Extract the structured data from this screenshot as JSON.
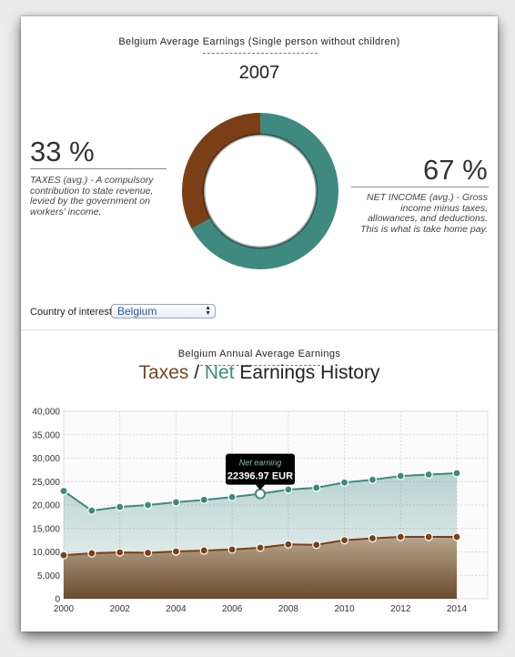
{
  "header": {
    "title": "Belgium Average Earnings (Single person without children)",
    "year": "2007"
  },
  "donut": {
    "taxes_pct_label": "33 %",
    "taxes_desc": "TAXES (avg.) - A compulsory contribution to state revenue, levied by the government on workers' income.",
    "net_pct_label": "67 %",
    "net_desc": "NET INCOME (avg.) - Gross income minus taxes, allowances, and deductions. This is what is take home pay.",
    "taxes_fraction": 0.33,
    "colors": {
      "taxes": "#7b3f17",
      "net": "#3e8a80"
    }
  },
  "country": {
    "label": "Country of interest:",
    "selected": "Belgium"
  },
  "history": {
    "subtitle": "Belgium Annual Average Earnings",
    "title_taxes": "Taxes",
    "title_sep": " / ",
    "title_net": "Net",
    "title_rest": " Earnings History"
  },
  "tooltip": {
    "label": "Net earning",
    "value": "22396.97 EUR"
  },
  "chart_data": {
    "type": "area",
    "x": [
      2000,
      2001,
      2002,
      2003,
      2004,
      2005,
      2006,
      2007,
      2008,
      2009,
      2010,
      2011,
      2012,
      2013,
      2014
    ],
    "series": [
      {
        "name": "Net",
        "color": "#3e8a80",
        "values": [
          23000,
          18800,
          19600,
          20000,
          20600,
          21100,
          21700,
          22397,
          23300,
          23700,
          24800,
          25400,
          26200,
          26500,
          26800
        ]
      },
      {
        "name": "Taxes",
        "color": "#7b3f17",
        "values": [
          9300,
          9700,
          9900,
          9800,
          10100,
          10300,
          10500,
          10900,
          11600,
          11500,
          12500,
          12900,
          13200,
          13200,
          13200
        ]
      }
    ],
    "highlight_index": 7,
    "ylim": [
      0,
      40000
    ],
    "yticks": [
      "0",
      "5,000",
      "10,000",
      "15,000",
      "20,000",
      "25,000",
      "30,000",
      "35,000",
      "40,000"
    ],
    "xticks": [
      "2000",
      "2002",
      "2004",
      "2006",
      "2008",
      "2010",
      "2012",
      "2014"
    ],
    "grid": true
  }
}
